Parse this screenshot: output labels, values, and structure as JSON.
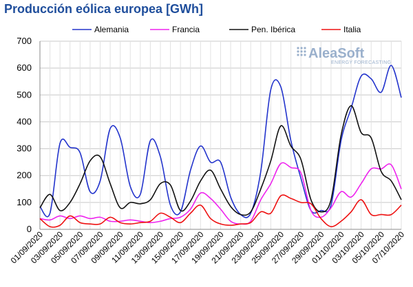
{
  "chart_data": {
    "type": "line",
    "title": "Producción eólica europea [GWh]",
    "xlabel": "",
    "ylabel": "",
    "ylim": [
      0,
      700
    ],
    "yticks": [
      0,
      100,
      200,
      300,
      400,
      500,
      600,
      700
    ],
    "grid": true,
    "legend_position": "top",
    "x": [
      "01/09/2020",
      "02/09/2020",
      "03/09/2020",
      "04/09/2020",
      "05/09/2020",
      "06/09/2020",
      "07/09/2020",
      "08/09/2020",
      "09/09/2020",
      "10/09/2020",
      "11/09/2020",
      "12/09/2020",
      "13/09/2020",
      "14/09/2020",
      "15/09/2020",
      "16/09/2020",
      "17/09/2020",
      "18/09/2020",
      "19/09/2020",
      "20/09/2020",
      "21/09/2020",
      "22/09/2020",
      "23/09/2020",
      "24/09/2020",
      "25/09/2020",
      "26/09/2020",
      "27/09/2020",
      "28/09/2020",
      "29/09/2020",
      "30/09/2020",
      "01/10/2020",
      "02/10/2020",
      "03/10/2020",
      "04/10/2020",
      "05/10/2020",
      "06/10/2020",
      "07/10/2020"
    ],
    "xtick_labels": [
      "01/09/2020",
      "03/09/2020",
      "05/09/2020",
      "07/09/2020",
      "09/09/2020",
      "11/09/2020",
      "13/09/2020",
      "15/09/2020",
      "17/09/2020",
      "19/09/2020",
      "21/09/2020",
      "23/09/2020",
      "25/09/2020",
      "27/09/2020",
      "29/09/2020",
      "01/10/2020",
      "03/10/2020",
      "05/10/2020",
      "07/10/2020"
    ],
    "series": [
      {
        "name": "Alemania",
        "color": "#2233cc",
        "values": [
          85,
          60,
          320,
          305,
          285,
          140,
          180,
          375,
          340,
          160,
          130,
          330,
          270,
          90,
          65,
          220,
          310,
          250,
          250,
          120,
          55,
          60,
          215,
          520,
          530,
          330,
          190,
          70,
          70,
          90,
          330,
          450,
          570,
          560,
          510,
          610,
          490
        ]
      },
      {
        "name": "Francia",
        "color": "#ee22ee",
        "values": [
          40,
          35,
          50,
          40,
          50,
          40,
          45,
          30,
          30,
          35,
          30,
          25,
          30,
          40,
          45,
          75,
          135,
          115,
          75,
          30,
          20,
          30,
          110,
          170,
          245,
          230,
          210,
          70,
          45,
          80,
          140,
          120,
          170,
          225,
          225,
          240,
          150
        ]
      },
      {
        "name": "Pen. Ibérica",
        "color": "#111111",
        "values": [
          80,
          130,
          70,
          100,
          170,
          255,
          270,
          170,
          80,
          100,
          95,
          110,
          170,
          165,
          70,
          105,
          180,
          220,
          150,
          85,
          55,
          65,
          150,
          255,
          385,
          310,
          260,
          110,
          65,
          110,
          350,
          460,
          360,
          340,
          215,
          180,
          110
        ]
      },
      {
        "name": "Italia",
        "color": "#ee1111",
        "values": [
          40,
          10,
          15,
          50,
          25,
          20,
          20,
          45,
          25,
          20,
          25,
          30,
          60,
          45,
          25,
          60,
          90,
          40,
          20,
          15,
          20,
          25,
          65,
          60,
          125,
          115,
          100,
          95,
          40,
          10,
          30,
          65,
          110,
          55,
          55,
          55,
          90
        ]
      }
    ]
  },
  "logo": {
    "name": "AleaSoft",
    "tagline": "ENERGY FORECASTING"
  }
}
